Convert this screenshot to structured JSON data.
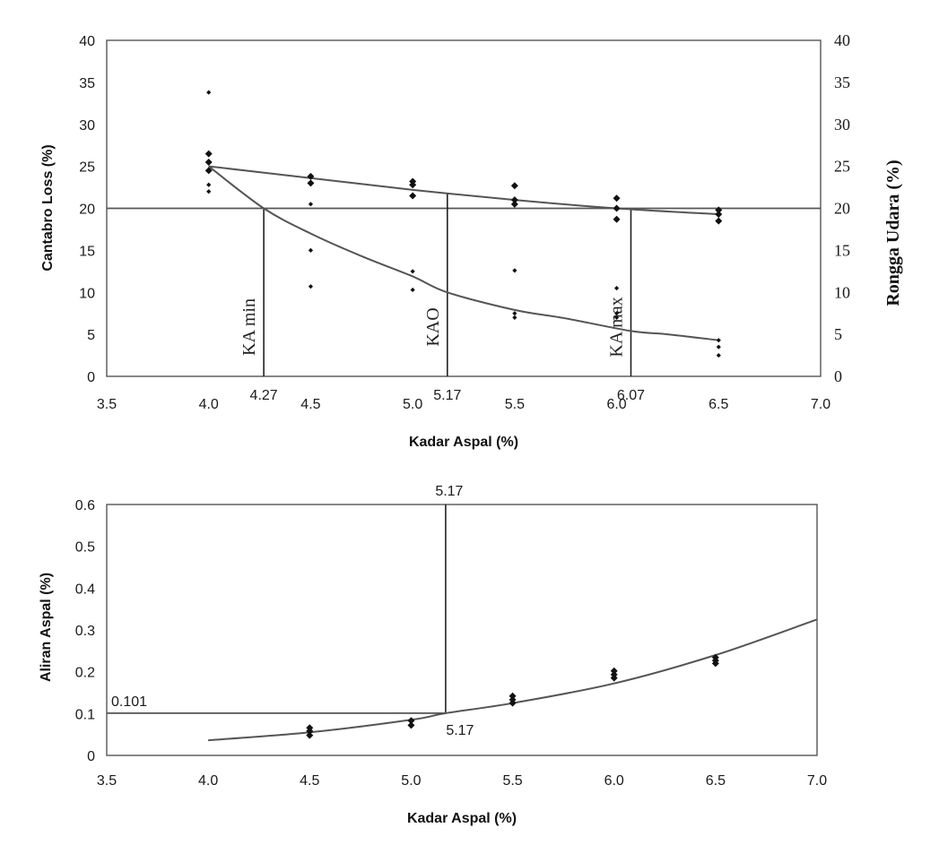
{
  "chart_data": [
    {
      "type": "scatter",
      "xlabel": "Kadar Aspal (%)",
      "ylabel": "Cantabro Loss (%)",
      "ylabel_right": "Rongga Udara (%)",
      "xlim": [
        3.5,
        7.0
      ],
      "ylim": [
        0,
        40
      ],
      "ylim_right": [
        0,
        40
      ],
      "x_ticks": [
        "3.5",
        "4.0",
        "4.5",
        "5.0",
        "5.5",
        "6.0",
        "6.5",
        "7.0"
      ],
      "y_ticks": [
        "0",
        "5",
        "10",
        "15",
        "20",
        "25",
        "30",
        "35",
        "40"
      ],
      "y_ticks_right": [
        "0",
        "5",
        "10",
        "15",
        "20",
        "25",
        "30",
        "35",
        "40"
      ],
      "grid": false,
      "series": [
        {
          "points": [
            [
              4.0,
              24.5
            ],
            [
              4.0,
              25.5
            ],
            [
              4.0,
              26.5
            ],
            [
              4.5,
              23.0
            ],
            [
              4.5,
              23.8
            ],
            [
              5.0,
              21.5
            ],
            [
              5.0,
              22.8
            ],
            [
              5.0,
              23.2
            ],
            [
              5.5,
              20.5
            ],
            [
              5.5,
              21.0
            ],
            [
              5.5,
              22.7
            ],
            [
              6.0,
              18.7
            ],
            [
              6.0,
              20.0
            ],
            [
              6.0,
              21.2
            ],
            [
              6.5,
              18.5
            ],
            [
              6.5,
              19.3
            ],
            [
              6.5,
              19.8
            ]
          ],
          "fit": [
            [
              4.0,
              25.0
            ],
            [
              4.5,
              23.6
            ],
            [
              5.0,
              22.2
            ],
            [
              5.5,
              21.0
            ],
            [
              6.0,
              20.0
            ],
            [
              6.5,
              19.3
            ]
          ]
        },
        {
          "points": [
            [
              4.0,
              33.8
            ],
            [
              4.0,
              22.0
            ],
            [
              4.0,
              22.8
            ],
            [
              4.5,
              20.5
            ],
            [
              4.5,
              15.0
            ],
            [
              4.5,
              10.7
            ],
            [
              5.0,
              12.5
            ],
            [
              5.0,
              10.3
            ],
            [
              5.5,
              12.6
            ],
            [
              5.5,
              7.0
            ],
            [
              5.5,
              7.5
            ],
            [
              6.0,
              10.5
            ],
            [
              6.0,
              7.0
            ],
            [
              6.0,
              7.5
            ],
            [
              6.5,
              4.3
            ],
            [
              6.5,
              3.5
            ],
            [
              6.5,
              2.5
            ]
          ],
          "fit": [
            [
              4.0,
              25.0
            ],
            [
              4.27,
              20.0
            ],
            [
              4.5,
              17.0
            ],
            [
              4.75,
              14.3
            ],
            [
              5.0,
              11.9
            ],
            [
              5.17,
              10.0
            ],
            [
              5.5,
              7.9
            ],
            [
              5.75,
              6.9
            ],
            [
              6.07,
              5.4
            ],
            [
              6.25,
              5.0
            ],
            [
              6.5,
              4.3
            ]
          ]
        }
      ],
      "reference_lines": {
        "horizontal": [
          20
        ],
        "vertical": [
          {
            "x": 4.27,
            "label": "KA min",
            "value_label": "4.27"
          },
          {
            "x": 5.17,
            "label": "KAO",
            "value_label": "5.17"
          },
          {
            "x": 6.07,
            "label": "KA max",
            "value_label": "6.07"
          }
        ]
      }
    },
    {
      "type": "scatter",
      "xlabel": "Kadar Aspal (%)",
      "ylabel": "Aliran Aspal (%)",
      "xlim": [
        3.5,
        7.0
      ],
      "ylim": [
        0,
        0.6
      ],
      "x_ticks": [
        "3.5",
        "4.0",
        "4.5",
        "5.0",
        "5.5",
        "6.0",
        "6.5",
        "7.0"
      ],
      "y_ticks": [
        "0",
        "0.1",
        "0.2",
        "0.3",
        "0.4",
        "0.5",
        "0.6"
      ],
      "grid": false,
      "series": [
        {
          "points": [
            [
              4.5,
              0.048
            ],
            [
              4.5,
              0.058
            ],
            [
              4.5,
              0.066
            ],
            [
              5.0,
              0.072
            ],
            [
              5.0,
              0.083
            ],
            [
              5.5,
              0.125
            ],
            [
              5.5,
              0.133
            ],
            [
              5.5,
              0.142
            ],
            [
              6.0,
              0.185
            ],
            [
              6.0,
              0.193
            ],
            [
              6.0,
              0.202
            ],
            [
              6.5,
              0.22
            ],
            [
              6.5,
              0.227
            ],
            [
              6.5,
              0.234
            ]
          ],
          "fit": [
            [
              4.0,
              0.036
            ],
            [
              4.5,
              0.055
            ],
            [
              5.0,
              0.085
            ],
            [
              5.17,
              0.101
            ],
            [
              5.5,
              0.125
            ],
            [
              6.0,
              0.172
            ],
            [
              6.5,
              0.24
            ],
            [
              7.0,
              0.325
            ]
          ]
        }
      ],
      "reference_lines": {
        "horizontal": [
          {
            "y": 0.101,
            "label": "0.101"
          }
        ],
        "vertical": [
          {
            "x": 5.17,
            "top_label": "5.17",
            "bottom_label": "5.17"
          }
        ]
      }
    }
  ]
}
